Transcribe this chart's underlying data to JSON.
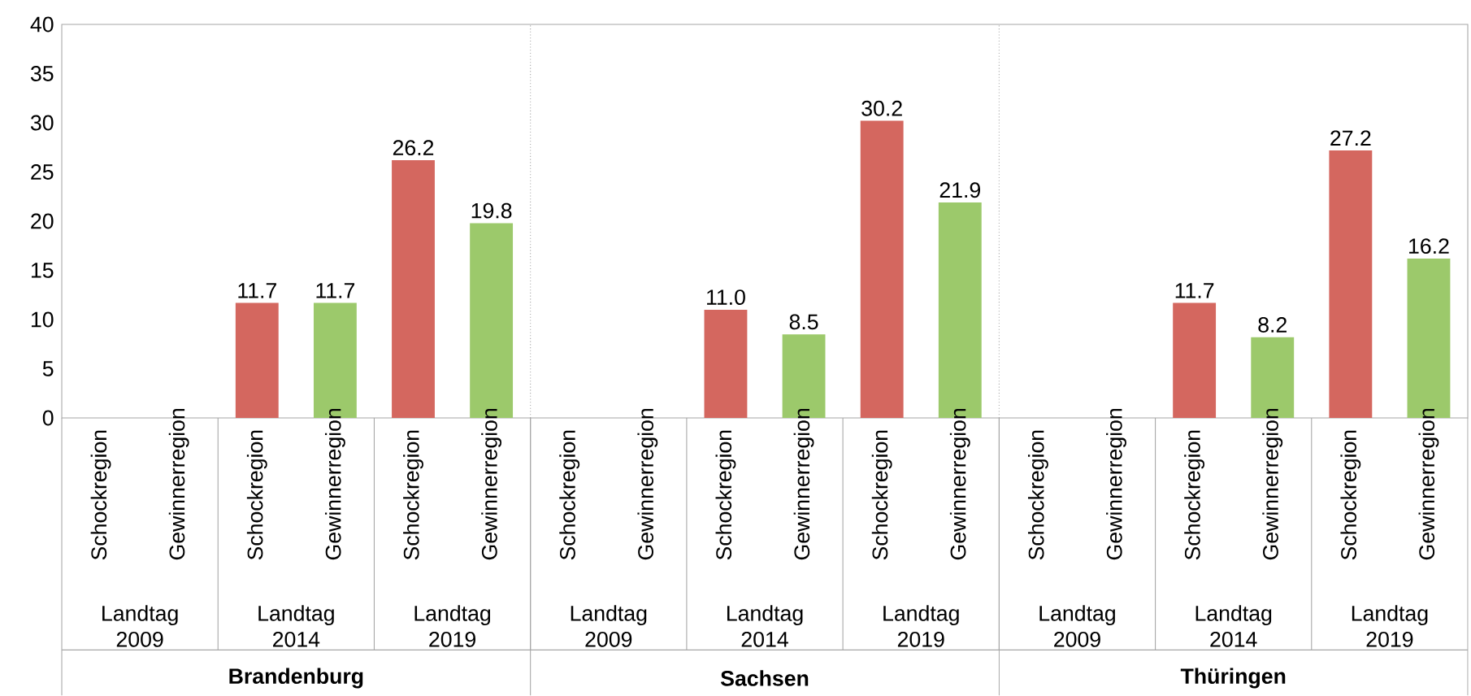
{
  "chart_data": {
    "type": "bar",
    "categories": [
      "Schockregion",
      "Gewinnerregion",
      "Schockregion",
      "Gewinnerregion",
      "Schockregion",
      "Gewinnerregion",
      "Schockregion",
      "Gewinnerregion",
      "Schockregion",
      "Gewinnerregion",
      "Schockregion",
      "Gewinnerregion",
      "Schockregion",
      "Gewinnerregion",
      "Schockregion",
      "Gewinnerregion",
      "Schockregion",
      "Gewinnerregion"
    ],
    "values": [
      null,
      null,
      11.7,
      11.7,
      26.2,
      19.8,
      null,
      null,
      11.0,
      8.5,
      30.2,
      21.9,
      null,
      null,
      11.7,
      8.2,
      27.2,
      16.2
    ],
    "value_labels": [
      null,
      null,
      "11.7",
      "11.7",
      "26.2",
      "19.8",
      null,
      null,
      "11.0",
      "8.5",
      "30.2",
      "21.9",
      null,
      null,
      "11.7",
      "8.2",
      "27.2",
      "16.2"
    ],
    "colors": [
      "#d4675f",
      "#9cc96b",
      "#d4675f",
      "#9cc96b",
      "#d4675f",
      "#9cc96b",
      "#d4675f",
      "#9cc96b",
      "#d4675f",
      "#9cc96b",
      "#d4675f",
      "#9cc96b",
      "#d4675f",
      "#9cc96b",
      "#d4675f",
      "#9cc96b",
      "#d4675f",
      "#9cc96b"
    ],
    "ylim": [
      0,
      40
    ],
    "yticks": [
      0,
      5,
      10,
      15,
      20,
      25,
      30,
      35,
      40
    ],
    "annotations": [
      "Landtag 2009",
      "Landtag 2014",
      "Landtag 2019",
      "Landtag 2009",
      "Landtag 2014",
      "Landtag 2019",
      "Landtag 2009",
      "Landtag 2014",
      "Landtag 2019",
      "**Brandenburg**",
      "**Sachsen**",
      "**Thüringen**"
    ]
  }
}
